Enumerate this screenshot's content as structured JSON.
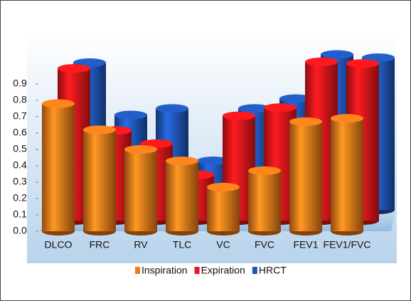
{
  "chart_data": {
    "type": "bar3d",
    "categories": [
      "DLCO",
      "FRC",
      "RV",
      "TLC",
      "VC",
      "FVC",
      "FEV1",
      "FEV1/FVC"
    ],
    "series": [
      {
        "name": "Inspiration",
        "color": "#f07a1a",
        "values": [
          0.78,
          0.62,
          0.5,
          0.43,
          0.27,
          0.37,
          0.67,
          0.69
        ]
      },
      {
        "name": "Expiration",
        "color": "#e8161b",
        "values": [
          0.93,
          0.55,
          0.47,
          0.28,
          0.64,
          0.69,
          0.97,
          0.96
        ]
      },
      {
        "name": "HRCT",
        "color": "#1f56b8",
        "values": [
          0.9,
          0.58,
          0.62,
          0.3,
          0.62,
          0.68,
          0.95,
          0.93
        ]
      }
    ],
    "ylim": [
      0,
      0.9
    ],
    "yticks": [
      {
        "value": 0,
        "label": "0.0"
      },
      0.1,
      0.2,
      0.3,
      0.4,
      0.5,
      0.6,
      0.7,
      0.8,
      0.9
    ]
  }
}
